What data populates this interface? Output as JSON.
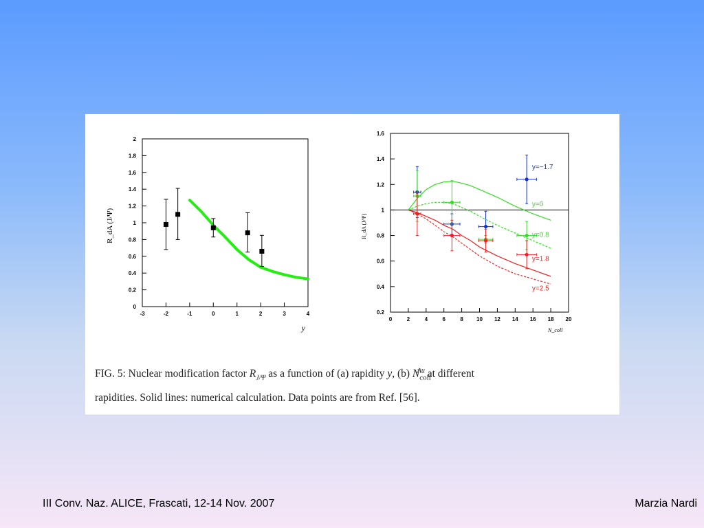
{
  "chart_data": [
    {
      "type": "scatter",
      "panel": "a",
      "xlabel": "y",
      "ylabel": "R_dA (J/Ψ)",
      "xlim": [
        -3,
        4
      ],
      "ylim": [
        0,
        2
      ],
      "xticks": [
        "-3",
        "-2",
        "-1",
        "0",
        "1",
        "2",
        "3",
        "4"
      ],
      "yticks": [
        "0",
        "0.2",
        "0.4",
        "0.6",
        "0.8",
        "1",
        "1.2",
        "1.4",
        "1.6",
        "1.8",
        "2"
      ],
      "colors": {
        "data": "#000000",
        "curve": "#22ee11"
      },
      "points": [
        {
          "x": -2.0,
          "y": 0.98,
          "yerr": [
            0.3,
            0.3
          ]
        },
        {
          "x": -1.5,
          "y": 1.1,
          "yerr": [
            0.3,
            0.31
          ]
        },
        {
          "x": 0.0,
          "y": 0.94,
          "yerr": [
            0.11,
            0.11
          ]
        },
        {
          "x": 1.45,
          "y": 0.88,
          "yerr": [
            0.23,
            0.24
          ]
        },
        {
          "x": 2.05,
          "y": 0.66,
          "yerr": [
            0.18,
            0.19
          ]
        }
      ],
      "curve": {
        "x": [
          -1.0,
          -0.5,
          0.0,
          0.5,
          1.0,
          1.5,
          2.0,
          2.5,
          3.0,
          3.5,
          4.0
        ],
        "y": [
          1.27,
          1.13,
          0.97,
          0.83,
          0.68,
          0.56,
          0.47,
          0.42,
          0.38,
          0.35,
          0.33
        ]
      }
    },
    {
      "type": "scatter",
      "panel": "b",
      "xlabel": "N_coll",
      "ylabel": "R_dA (J/Ψ)",
      "xlim": [
        0,
        20
      ],
      "ylim": [
        0.2,
        1.6
      ],
      "xticks": [
        "0",
        "2",
        "4",
        "6",
        "8",
        "10",
        "12",
        "14",
        "16",
        "18",
        "20"
      ],
      "yticks": [
        "0.2",
        "0.4",
        "0.6",
        "0.8",
        "1",
        "1.2",
        "1.4",
        "1.6"
      ],
      "reference_line": 1.0,
      "series": [
        {
          "name": "y=−1.7",
          "color": "#1133cc",
          "points": [
            {
              "x": 3.0,
              "y": 1.14,
              "xerr": 0.4,
              "yerr": 0.2
            },
            {
              "x": 6.9,
              "y": 0.89,
              "xerr": 0.9,
              "yerr": 0.08
            },
            {
              "x": 10.7,
              "y": 0.87,
              "xerr": 0.8,
              "yerr": 0.12
            },
            {
              "x": 15.3,
              "y": 1.24,
              "xerr": 1.1,
              "yerr": 0.19
            }
          ]
        },
        {
          "name": "y=0",
          "color": "#33dd22",
          "line": "solid",
          "points": [
            {
              "x": 3.0,
              "y": 1.11,
              "xerr": 0.4,
              "yerr": 0.2
            },
            {
              "x": 6.9,
              "y": 1.06,
              "xerr": 0.9,
              "yerr": 0.17
            }
          ],
          "curve": {
            "x": [
              2,
              3,
              4,
              5,
              6,
              7,
              8,
              9,
              10,
              12,
              14,
              16,
              18
            ],
            "y": [
              1.0,
              1.09,
              1.16,
              1.2,
              1.22,
              1.225,
              1.21,
              1.19,
              1.16,
              1.1,
              1.03,
              0.97,
              0.92
            ]
          }
        },
        {
          "name": "y=0.8",
          "color": "#33dd22",
          "line": "dashed",
          "points": [
            {
              "x": 10.7,
              "y": 0.77,
              "xerr": 0.8,
              "yerr": 0.03
            },
            {
              "x": 15.3,
              "y": 0.8,
              "xerr": 1.1,
              "yerr": 0.11
            }
          ],
          "curve": {
            "x": [
              2,
              3,
              4,
              5,
              6,
              7,
              8,
              9,
              10,
              12,
              14,
              16,
              18
            ],
            "y": [
              1.0,
              1.03,
              1.05,
              1.06,
              1.06,
              1.05,
              1.02,
              0.99,
              0.95,
              0.88,
              0.82,
              0.76,
              0.7
            ]
          }
        },
        {
          "name": "y=1.8",
          "color": "#ee2222",
          "line": "solid",
          "points": [
            {
              "x": 3.0,
              "y": 0.97,
              "xerr": 0.4,
              "yerr": 0.17
            },
            {
              "x": 6.9,
              "y": 0.8,
              "xerr": 0.9,
              "yerr": 0.12
            },
            {
              "x": 10.7,
              "y": 0.76,
              "xerr": 0.8,
              "yerr": 0.09
            },
            {
              "x": 15.3,
              "y": 0.65,
              "xerr": 1.1,
              "yerr": 0.11
            }
          ],
          "curve": {
            "x": [
              2,
              3,
              4,
              5,
              6,
              7,
              8,
              9,
              10,
              12,
              14,
              16,
              18
            ],
            "y": [
              1.0,
              0.98,
              0.95,
              0.92,
              0.88,
              0.85,
              0.8,
              0.76,
              0.71,
              0.64,
              0.58,
              0.53,
              0.48
            ]
          }
        },
        {
          "name": "y=2.5",
          "color": "#ee2222",
          "line": "dashed",
          "curve": {
            "x": [
              2,
              3,
              4,
              5,
              6,
              7,
              8,
              9,
              10,
              12,
              14,
              16,
              18
            ],
            "y": [
              1.0,
              0.97,
              0.93,
              0.88,
              0.83,
              0.79,
              0.74,
              0.69,
              0.64,
              0.56,
              0.5,
              0.46,
              0.42
            ]
          }
        }
      ]
    }
  ],
  "caption": {
    "line1": "FIG. 5: Nuclear modification factor R_J/Ψ as a function of (a) rapidity y, (b) N_coll^Au at different",
    "line2": "rapidities. Solid lines: numerical calculation. Data points are from Ref. [56]."
  },
  "footer": {
    "left": "III Conv. Naz. ALICE, Frascati, 12-14 Nov. 2007",
    "right": "Marzia Nardi"
  }
}
